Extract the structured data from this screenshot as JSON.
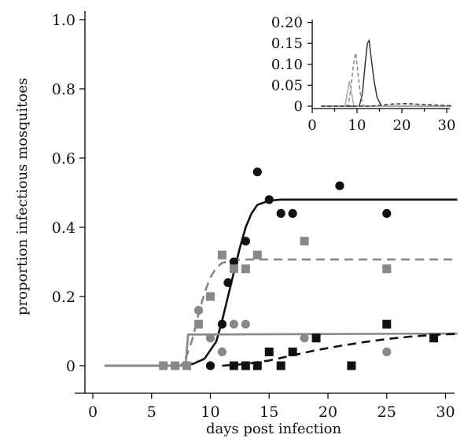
{
  "chart_data": [
    {
      "type": "scatter",
      "xlabel": "days post infection",
      "ylabel": "proportion infectious mosquitoes",
      "xlim": [
        0,
        31
      ],
      "ylim": [
        0,
        1.0
      ],
      "xticks": [
        0,
        5,
        10,
        15,
        20,
        25,
        30
      ],
      "yticks": [
        0,
        0.2,
        0.4,
        0.6,
        0.8,
        1.0
      ],
      "xtick_labels": [
        "0",
        "5",
        "10",
        "15",
        "20",
        "25",
        "30"
      ],
      "ytick_labels": [
        "0",
        "0.2",
        "0.4",
        "0.6",
        "0.8",
        "1.0"
      ],
      "grid": false,
      "series": [
        {
          "marker": "circle",
          "color": "#111111",
          "points": [
            [
              10,
              0
            ],
            [
              11,
              0.12
            ],
            [
              11.5,
              0.24
            ],
            [
              12,
              0.3
            ],
            [
              13,
              0.36
            ],
            [
              14,
              0.56
            ],
            [
              15,
              0.48
            ],
            [
              16,
              0.44
            ],
            [
              17,
              0.44
            ],
            [
              21,
              0.52
            ],
            [
              25,
              0.44
            ]
          ],
          "fit": {
            "style": "solid",
            "color": "#111111",
            "points": [
              [
                1,
                0
              ],
              [
                7.5,
                0
              ],
              [
                8.5,
                0.005
              ],
              [
                9.5,
                0.02
              ],
              [
                10.5,
                0.07
              ],
              [
                11,
                0.13
              ],
              [
                11.5,
                0.2
              ],
              [
                12,
                0.27
              ],
              [
                12.5,
                0.34
              ],
              [
                13,
                0.4
              ],
              [
                13.5,
                0.44
              ],
              [
                14,
                0.465
              ],
              [
                15,
                0.477
              ],
              [
                16,
                0.48
              ],
              [
                31,
                0.48
              ]
            ]
          }
        },
        {
          "marker": "square",
          "color": "#888888",
          "points": [
            [
              6,
              0
            ],
            [
              7,
              0
            ],
            [
              8,
              0
            ],
            [
              9,
              0.12
            ],
            [
              10,
              0.2
            ],
            [
              11,
              0.32
            ],
            [
              12,
              0.28
            ],
            [
              13,
              0.28
            ],
            [
              14,
              0.32
            ],
            [
              18,
              0.36
            ],
            [
              25,
              0.28
            ]
          ],
          "fit": {
            "style": "dashed",
            "color": "#888888",
            "points": [
              [
                1,
                0
              ],
              [
                7.5,
                0
              ],
              [
                8,
                0.03
              ],
              [
                8.5,
                0.08
              ],
              [
                9,
                0.15
              ],
              [
                9.5,
                0.21
              ],
              [
                10,
                0.255
              ],
              [
                10.5,
                0.283
              ],
              [
                11,
                0.297
              ],
              [
                12,
                0.305
              ],
              [
                13,
                0.307
              ],
              [
                31,
                0.307
              ]
            ]
          }
        },
        {
          "marker": "circle",
          "color": "#888888",
          "points": [
            [
              9,
              0.16
            ],
            [
              10,
              0.08
            ],
            [
              11,
              0.04
            ],
            [
              12,
              0.12
            ],
            [
              13,
              0.12
            ],
            [
              18,
              0.08
            ],
            [
              25,
              0.04
            ]
          ],
          "fit": {
            "style": "solid",
            "color": "#888888",
            "points": [
              [
                1,
                0
              ],
              [
                7.9,
                0
              ],
              [
                8.1,
                0.09
              ],
              [
                31,
                0.093
              ]
            ]
          }
        },
        {
          "marker": "square",
          "color": "#111111",
          "points": [
            [
              12,
              0
            ],
            [
              13,
              0
            ],
            [
              14,
              0
            ],
            [
              15,
              0.04
            ],
            [
              16,
              0
            ],
            [
              17,
              0.04
            ],
            [
              19,
              0.08
            ],
            [
              22,
              0
            ],
            [
              25,
              0.12
            ],
            [
              29,
              0.08
            ]
          ],
          "fit": {
            "style": "dashed",
            "color": "#111111",
            "points": [
              [
                11,
                0
              ],
              [
                13,
                0.005
              ],
              [
                15,
                0.015
              ],
              [
                17,
                0.03
              ],
              [
                19,
                0.045
              ],
              [
                21,
                0.057
              ],
              [
                23,
                0.068
              ],
              [
                25,
                0.077
              ],
              [
                27,
                0.084
              ],
              [
                29,
                0.089
              ],
              [
                31,
                0.092
              ]
            ]
          }
        }
      ]
    },
    {
      "type": "line",
      "inset": true,
      "xlim": [
        0,
        31
      ],
      "ylim": [
        0,
        0.2
      ],
      "xticks": [
        0,
        10,
        20,
        30
      ],
      "yticks": [
        0,
        0.05,
        0.1,
        0.15,
        0.2
      ],
      "xtick_labels": [
        "0",
        "10",
        "20",
        "30"
      ],
      "ytick_labels": [
        "0",
        "0.05",
        "0.10",
        "0.15",
        "0.20"
      ],
      "series": [
        {
          "style": "solid",
          "color": "#333333",
          "points": [
            [
              2,
              0
            ],
            [
              10.5,
              0
            ],
            [
              11.2,
              0.03
            ],
            [
              11.8,
              0.1
            ],
            [
              12.3,
              0.15
            ],
            [
              12.7,
              0.157
            ],
            [
              13.1,
              0.12
            ],
            [
              13.8,
              0.06
            ],
            [
              14.5,
              0.02
            ],
            [
              15.5,
              0
            ],
            [
              31,
              0
            ]
          ]
        },
        {
          "style": "dashed",
          "color": "#888888",
          "points": [
            [
              2,
              0
            ],
            [
              8,
              0
            ],
            [
              8.6,
              0.04
            ],
            [
              9.2,
              0.1
            ],
            [
              9.7,
              0.127
            ],
            [
              10.2,
              0.08
            ],
            [
              10.8,
              0.025
            ],
            [
              11.5,
              0
            ],
            [
              31,
              0
            ]
          ]
        },
        {
          "style": "solid",
          "color": "#aaaaaa",
          "points": [
            [
              2,
              0
            ],
            [
              7.3,
              0
            ],
            [
              7.8,
              0.03
            ],
            [
              8.3,
              0.06
            ],
            [
              8.8,
              0.03
            ],
            [
              9.3,
              0
            ],
            [
              31,
              0
            ]
          ]
        },
        {
          "style": "dashed",
          "color": "#333333",
          "points": [
            [
              2,
              0
            ],
            [
              13,
              0
            ],
            [
              15,
              0.002
            ],
            [
              18,
              0.005
            ],
            [
              21,
              0.006
            ],
            [
              25,
              0.004
            ],
            [
              29,
              0.002
            ],
            [
              31,
              0.001
            ]
          ]
        }
      ]
    }
  ]
}
